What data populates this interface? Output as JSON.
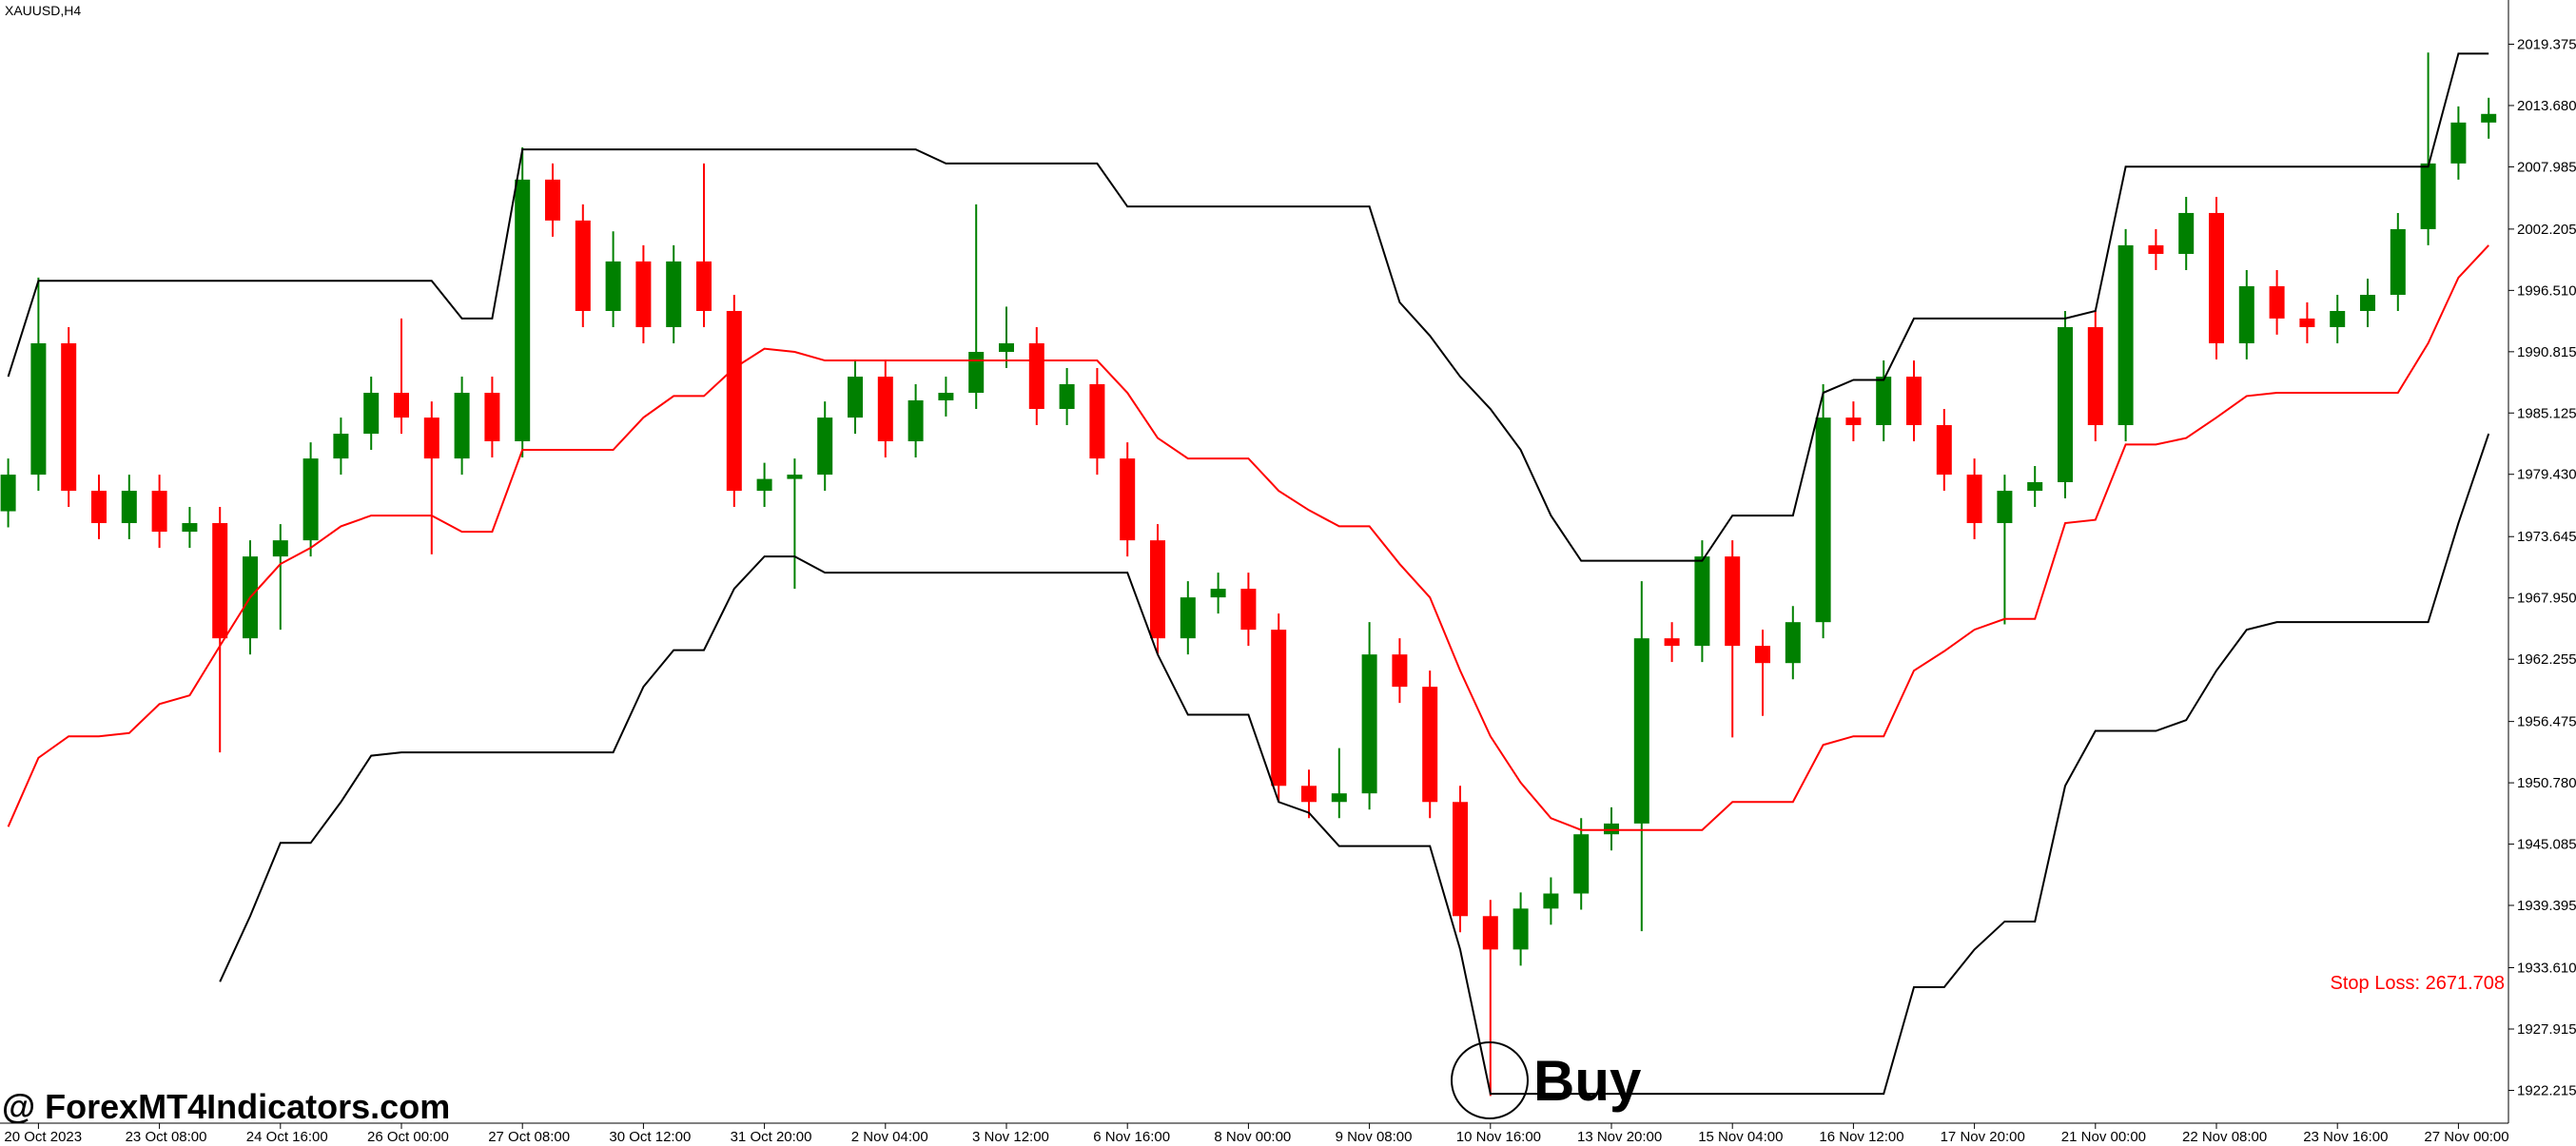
{
  "chart_data": {
    "type": "candlestick",
    "title": "XAUUSD,H4",
    "categories": [
      null,
      "20 Oct 2023",
      null,
      null,
      null,
      "23 Oct 08:00",
      null,
      null,
      null,
      "24 Oct 16:00",
      null,
      null,
      null,
      "26 Oct 00:00",
      null,
      null,
      null,
      "27 Oct 08:00",
      null,
      null,
      null,
      "30 Oct 12:00",
      null,
      null,
      null,
      "31 Oct 20:00",
      null,
      null,
      null,
      "2 Nov 04:00",
      null,
      null,
      null,
      "3 Nov 12:00",
      null,
      null,
      null,
      "6 Nov 16:00",
      null,
      null,
      null,
      "8 Nov 00:00",
      null,
      null,
      null,
      "9 Nov 08:00",
      null,
      null,
      null,
      "10 Nov 16:00",
      null,
      null,
      null,
      "13 Nov 20:00",
      null,
      null,
      null,
      "15 Nov 04:00",
      null,
      null,
      null,
      "16 Nov 12:00",
      null,
      null,
      null,
      "17 Nov 20:00",
      null,
      null,
      null,
      "21 Nov 00:00",
      null,
      null,
      null,
      "22 Nov 08:00",
      null,
      null,
      null,
      "23 Nov 16:00",
      null,
      null,
      null,
      "27 Nov 00:00",
      null
    ],
    "open": [
      1976.0,
      1979.4,
      1991.6,
      1977.9,
      1974.9,
      1977.9,
      1974.1,
      1974.9,
      1964.2,
      1971.8,
      1973.3,
      1980.9,
      1983.2,
      1987.0,
      1984.7,
      1980.9,
      1987.0,
      1982.5,
      2006.8,
      2003.0,
      1994.6,
      1999.2,
      1993.1,
      1999.2,
      1994.6,
      1977.9,
      1979.0,
      1979.4,
      1984.7,
      1988.5,
      1982.5,
      1986.3,
      1987.0,
      1990.8,
      1991.6,
      1985.5,
      1987.8,
      1980.9,
      1973.3,
      1964.2,
      1968.0,
      1968.8,
      1965.0,
      1950.5,
      1949.0,
      1949.8,
      1962.7,
      1959.7,
      1949.0,
      1938.4,
      1935.3,
      1939.1,
      1940.5,
      1946.0,
      1947.0,
      1964.2,
      1963.5,
      1971.8,
      1963.5,
      1961.9,
      1965.7,
      1984.7,
      1984.0,
      1988.5,
      1984.0,
      1979.4,
      1974.9,
      1977.9,
      1978.7,
      1993.1,
      1984.0,
      2000.7,
      1999.9,
      2003.7,
      1991.6,
      1996.9,
      1993.9,
      1993.1,
      1994.6,
      1996.1,
      2002.2,
      2008.3,
      2012.1
    ],
    "high": [
      1980.9,
      1997.7,
      1993.1,
      1979.4,
      1979.4,
      1979.4,
      1976.4,
      1976.4,
      1973.3,
      1974.8,
      1982.4,
      1984.7,
      1988.5,
      1993.9,
      1986.2,
      1988.5,
      1988.5,
      2009.8,
      2008.3,
      2004.5,
      2002.0,
      2000.7,
      2000.7,
      2008.3,
      1996.1,
      1980.5,
      1980.9,
      1986.2,
      1990.0,
      1990.0,
      1987.8,
      1988.5,
      2004.5,
      1995.0,
      1993.1,
      1989.3,
      1989.3,
      1982.4,
      1974.8,
      1969.5,
      1970.3,
      1970.3,
      1966.5,
      1952.0,
      1954.0,
      1965.7,
      1964.2,
      1961.2,
      1950.5,
      1939.9,
      1940.6,
      1942.0,
      1947.5,
      1948.5,
      1969.5,
      1965.7,
      1973.3,
      1973.3,
      1965.0,
      1967.2,
      1987.8,
      1986.2,
      1990.0,
      1990.0,
      1985.5,
      1980.9,
      1979.4,
      1980.2,
      1994.6,
      1994.6,
      2002.2,
      2002.2,
      2005.2,
      2005.2,
      1998.4,
      1998.4,
      1995.4,
      1996.1,
      1997.6,
      2003.7,
      2018.6,
      2013.6,
      2014.4
    ],
    "low": [
      1974.5,
      1977.9,
      1976.4,
      1973.4,
      1973.4,
      1972.6,
      1972.6,
      1953.6,
      1962.7,
      1965.0,
      1971.8,
      1979.4,
      1981.7,
      1983.2,
      1972.0,
      1979.4,
      1981.0,
      1981.0,
      2001.5,
      1993.1,
      1993.1,
      1991.6,
      1991.6,
      1993.1,
      1976.4,
      1976.4,
      1968.8,
      1977.9,
      1983.2,
      1981.0,
      1981.0,
      1984.8,
      1985.5,
      1989.3,
      1984.0,
      1984.0,
      1979.4,
      1971.8,
      1962.7,
      1962.7,
      1966.5,
      1963.5,
      1949.0,
      1947.5,
      1947.5,
      1948.3,
      1958.2,
      1947.5,
      1936.9,
      1921.7,
      1933.8,
      1937.6,
      1939.0,
      1944.5,
      1937.0,
      1962.0,
      1962.0,
      1955.0,
      1957.0,
      1960.4,
      1964.2,
      1982.5,
      1982.5,
      1982.5,
      1977.9,
      1973.4,
      1965.5,
      1976.4,
      1977.2,
      1982.5,
      1982.5,
      1998.4,
      1998.4,
      1990.1,
      1990.1,
      1992.4,
      1991.6,
      1991.6,
      1993.1,
      1994.6,
      2000.7,
      2006.8,
      2010.6
    ],
    "close": [
      1979.4,
      1991.6,
      1977.9,
      1974.9,
      1977.9,
      1974.1,
      1974.9,
      1964.2,
      1971.8,
      1973.3,
      1980.9,
      1983.2,
      1987.0,
      1984.7,
      1980.9,
      1987.0,
      1982.5,
      2006.8,
      2003.0,
      1994.6,
      1999.2,
      1993.1,
      1999.2,
      1994.6,
      1977.9,
      1979.0,
      1979.4,
      1984.7,
      1988.5,
      1982.5,
      1986.3,
      1987.0,
      1990.8,
      1991.6,
      1985.5,
      1987.8,
      1980.9,
      1973.3,
      1964.2,
      1968.0,
      1968.8,
      1965.0,
      1950.5,
      1949.0,
      1949.8,
      1962.7,
      1959.7,
      1949.0,
      1938.4,
      1935.3,
      1939.1,
      1940.5,
      1946.0,
      1947.0,
      1964.2,
      1963.5,
      1971.8,
      1963.5,
      1961.9,
      1965.7,
      1984.7,
      1984.0,
      1988.5,
      1984.0,
      1979.4,
      1974.9,
      1977.9,
      1978.7,
      1993.1,
      1984.0,
      2000.7,
      1999.9,
      2003.7,
      1991.6,
      1996.9,
      1993.9,
      1993.1,
      1994.6,
      1996.1,
      2002.2,
      2008.3,
      2012.1,
      2012.9
    ],
    "up_color": "#008000",
    "down_color": "#ff0000",
    "lines": [
      {
        "color": "#000000",
        "values": [
          1988.5,
          1997.4,
          1997.4,
          1997.4,
          1997.4,
          1997.4,
          1997.4,
          1997.4,
          1997.4,
          1997.4,
          1997.4,
          1997.4,
          1997.4,
          1997.4,
          1997.4,
          1993.9,
          1993.9,
          2009.6,
          2009.6,
          2009.6,
          2009.6,
          2009.6,
          2009.6,
          2009.6,
          2009.6,
          2009.6,
          2009.6,
          2009.6,
          2009.6,
          2009.6,
          2009.6,
          2008.3,
          2008.3,
          2008.3,
          2008.3,
          2008.3,
          2008.3,
          2004.3,
          2004.3,
          2004.3,
          2004.3,
          2004.3,
          2004.3,
          2004.3,
          2004.3,
          2004.3,
          1995.4,
          1992.3,
          1988.5,
          1985.5,
          1981.7,
          1975.6,
          1971.4,
          1971.4,
          1971.4,
          1971.4,
          1971.4,
          1975.6,
          1975.6,
          1975.6,
          1987.0,
          1988.2,
          1988.2,
          1993.9,
          1993.9,
          1993.9,
          1993.9,
          1993.9,
          1993.9,
          1994.6,
          2008.0,
          2008.0,
          2008.0,
          2008.0,
          2008.0,
          2008.0,
          2008.0,
          2008.0,
          2008.0,
          2008.0,
          2008.0,
          2018.5,
          2018.5
        ]
      },
      {
        "color": "#ff0000",
        "values": [
          1946.7,
          1953.1,
          1955.1,
          1955.1,
          1955.4,
          1958.1,
          1958.9,
          1963.5,
          1968.0,
          1971.1,
          1972.6,
          1974.6,
          1975.6,
          1975.6,
          1975.6,
          1974.1,
          1974.1,
          1981.7,
          1981.7,
          1981.7,
          1981.7,
          1984.7,
          1986.7,
          1986.7,
          1989.3,
          1991.1,
          1990.8,
          1990.0,
          1990.0,
          1990.0,
          1990.0,
          1990.0,
          1990.0,
          1990.0,
          1990.0,
          1990.0,
          1990.0,
          1987.0,
          1982.8,
          1980.9,
          1980.9,
          1980.9,
          1977.9,
          1976.1,
          1974.6,
          1974.6,
          1971.1,
          1968.0,
          1961.2,
          1955.1,
          1950.8,
          1947.5,
          1946.4,
          1946.4,
          1946.4,
          1946.4,
          1946.4,
          1949.0,
          1949.0,
          1949.0,
          1954.3,
          1955.1,
          1955.1,
          1961.2,
          1963.0,
          1965.0,
          1966.0,
          1966.0,
          1974.9,
          1975.2,
          1982.2,
          1982.2,
          1982.8,
          1984.7,
          1986.7,
          1987.0,
          1987.0,
          1987.0,
          1987.0,
          1987.0,
          1991.6,
          1997.7,
          2000.7
        ]
      },
      {
        "color": "#000000",
        "values": [
          null,
          null,
          null,
          null,
          null,
          null,
          null,
          1932.3,
          1938.4,
          1945.2,
          1945.2,
          1949.0,
          1953.3,
          1953.6,
          1953.6,
          1953.6,
          1953.6,
          1953.6,
          1953.6,
          1953.6,
          1953.6,
          1959.7,
          1963.1,
          1963.1,
          1968.8,
          1971.8,
          1971.8,
          1970.3,
          1970.3,
          1970.3,
          1970.3,
          1970.3,
          1970.3,
          1970.3,
          1970.3,
          1970.3,
          1970.3,
          1970.3,
          1962.7,
          1957.1,
          1957.1,
          1957.1,
          1949.0,
          1948.0,
          1944.9,
          1944.9,
          1944.9,
          1944.9,
          1935.3,
          1921.9,
          1921.9,
          1921.9,
          1921.9,
          1921.9,
          1921.9,
          1921.9,
          1921.9,
          1921.9,
          1921.9,
          1921.9,
          1921.9,
          1921.9,
          1921.9,
          1931.8,
          1931.8,
          1935.3,
          1937.9,
          1937.9,
          1950.5,
          1955.6,
          1955.6,
          1955.6,
          1956.6,
          1961.2,
          1965.0,
          1965.7,
          1965.7,
          1965.7,
          1965.7,
          1965.7,
          1965.7,
          1974.9,
          1983.2
        ]
      }
    ],
    "ylim": [
      1919.17,
      2023.48
    ],
    "yticks": [
      2019.375,
      {
        "value": 2013.68,
        "label": "2013.680"
      },
      2007.985,
      2002.205,
      {
        "value": 1996.51,
        "label": "1996.510"
      },
      1990.815,
      1985.125,
      {
        "value": 1979.43,
        "label": "1979.430"
      },
      1973.645,
      {
        "value": 1967.95,
        "label": "1967.950"
      },
      1962.255,
      1956.475,
      {
        "value": 1950.78,
        "label": "1950.780"
      },
      1945.085,
      1939.395,
      {
        "value": 1933.61,
        "label": "1933.610"
      },
      1927.915,
      1922.215
    ],
    "signal_label": "Buy",
    "stop_loss_label": "Stop Loss: 2671.708"
  },
  "watermark": "@ ForexMT4Indicators.com"
}
